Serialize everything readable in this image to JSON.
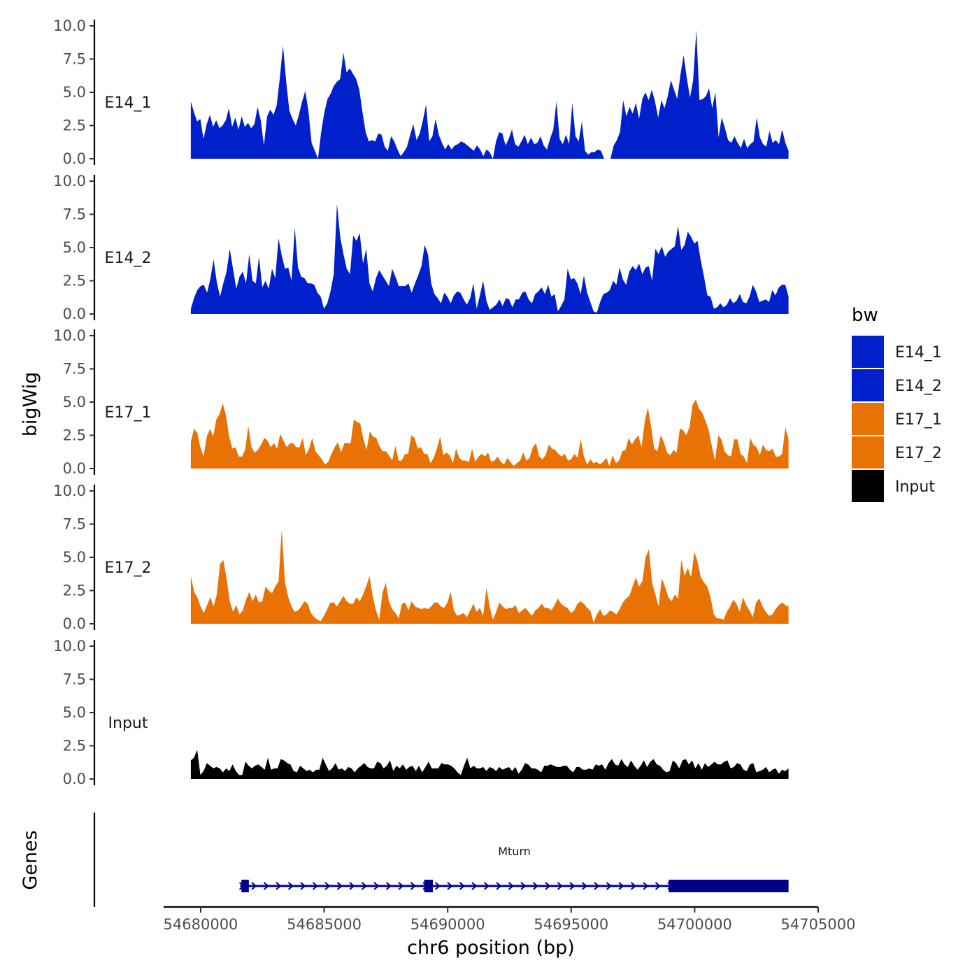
{
  "chart_data": {
    "type": "area",
    "chromosome": "chr6",
    "xlabel": "chr6 position (bp)",
    "ylabel": "bigWig",
    "genes_ylabel": "Genes",
    "xlim": [
      54678500,
      54705000
    ],
    "ylim": [
      0,
      10
    ],
    "x_ticks": [
      54680000,
      54685000,
      54690000,
      54695000,
      54700000,
      54705000
    ],
    "x_tick_labels": [
      "54680000",
      "54685000",
      "54690000",
      "54695000",
      "54700000",
      "54705000"
    ],
    "y_ticks": [
      0,
      2.5,
      5,
      7.5,
      10
    ],
    "y_tick_labels": [
      "0.0",
      "2.5",
      "5.0",
      "7.5",
      "10.0"
    ],
    "legend": {
      "title": "bw",
      "position": "right",
      "entries": [
        {
          "name": "E14_1",
          "color": "#0020CC"
        },
        {
          "name": "E14_2",
          "color": "#0020CC"
        },
        {
          "name": "E17_1",
          "color": "#E87304"
        },
        {
          "name": "E17_2",
          "color": "#E87304"
        },
        {
          "name": "Input",
          "color": "#000000"
        }
      ]
    },
    "series": [
      {
        "name": "E14_1",
        "label": "E14_1",
        "color": "#0020CC",
        "x_start": 54679600,
        "x_end": 54703800,
        "values": [
          4.3,
          3.5,
          2.8,
          3.0,
          1.5,
          2.6,
          3.3,
          2.4,
          2.9,
          2.3,
          2.5,
          2.9,
          3.8,
          2.4,
          3.1,
          2.2,
          3.2,
          2.4,
          2.7,
          2.3,
          2.6,
          3.9,
          2.9,
          1.0,
          3.2,
          3.7,
          3.3,
          4.0,
          6.1,
          8.5,
          5.8,
          3.6,
          3.0,
          2.5,
          3.3,
          4.3,
          5.1,
          3.6,
          1.2,
          0.6,
          0.0,
          2.0,
          3.5,
          4.5,
          4.9,
          5.5,
          5.8,
          6.0,
          8.0,
          6.5,
          6.8,
          6.4,
          6.0,
          5.2,
          3.5,
          2.0,
          1.3,
          1.4,
          1.3,
          1.9,
          1.8,
          0.9,
          0.6,
          1.7,
          1.3,
          0.7,
          0.2,
          0.5,
          0.9,
          1.8,
          2.6,
          1.4,
          1.9,
          2.9,
          4.1,
          1.3,
          1.7,
          3.0,
          1.8,
          1.2,
          0.7,
          1.1,
          0.7,
          1.0,
          1.1,
          1.3,
          1.2,
          1.0,
          0.8,
          0.6,
          1.0,
          0.7,
          0.2,
          0.7,
          0.5,
          0.0,
          1.3,
          2.0,
          1.9,
          1.0,
          1.5,
          2.2,
          1.1,
          0.9,
          1.3,
          1.8,
          1.1,
          1.6,
          1.1,
          1.2,
          1.7,
          1.0,
          0.7,
          1.5,
          2.2,
          4.3,
          1.5,
          1.1,
          1.8,
          1.1,
          4.2,
          1.7,
          1.3,
          2.8,
          0.6,
          0.3,
          0.5,
          0.5,
          0.7,
          0.6,
          0.0,
          0.0,
          0.0,
          1.0,
          1.4,
          2.0,
          4.4,
          3.2,
          3.9,
          3.4,
          4.2,
          3.0,
          4.5,
          5.0,
          4.4,
          5.2,
          4.3,
          3.1,
          4.4,
          3.8,
          4.7,
          5.9,
          5.2,
          4.5,
          6.3,
          7.8,
          6.1,
          4.6,
          5.9,
          9.7,
          4.4,
          4.5,
          4.7,
          5.3,
          3.8,
          5.0,
          1.6,
          3.1,
          2.3,
          1.4,
          1.2,
          1.7,
          1.2,
          0.8,
          1.5,
          0.8,
          1.1,
          1.3,
          3.1,
          1.6,
          1.1,
          0.9,
          2.1,
          1.2,
          1.4,
          1.1,
          2.2,
          1.2,
          0.6
        ]
      },
      {
        "name": "E14_2",
        "label": "E14_2",
        "color": "#0020CC",
        "x_start": 54679600,
        "x_end": 54703800,
        "values": [
          0.4,
          1.2,
          1.8,
          2.1,
          2.2,
          1.6,
          2.6,
          4.1,
          2.4,
          1.3,
          2.3,
          3.2,
          4.9,
          3.4,
          1.9,
          2.8,
          3.2,
          2.3,
          4.5,
          2.5,
          2.3,
          4.3,
          2.0,
          2.5,
          1.9,
          3.4,
          2.7,
          5.7,
          4.4,
          3.4,
          3.5,
          2.5,
          6.5,
          3.5,
          2.8,
          2.7,
          2.3,
          2.3,
          2.2,
          1.6,
          1.3,
          0.4,
          0.8,
          1.7,
          3.0,
          8.3,
          5.8,
          4.5,
          3.4,
          3.0,
          5.9,
          5.5,
          6.1,
          3.8,
          4.9,
          2.3,
          1.7,
          2.7,
          3.3,
          2.9,
          2.5,
          2.1,
          3.4,
          2.8,
          2.1,
          2.1,
          2.1,
          2.3,
          1.6,
          2.3,
          2.9,
          3.6,
          5.2,
          4.5,
          2.3,
          1.5,
          1.2,
          0.8,
          1.6,
          1.3,
          0.8,
          1.4,
          1.7,
          1.6,
          1.1,
          0.7,
          1.2,
          2.3,
          0.4,
          1.4,
          2.5,
          1.0,
          0.3,
          0.5,
          0.7,
          1.1,
          0.6,
          1.2,
          1.1,
          0.5,
          1.1,
          1.1,
          1.6,
          1.7,
          1.1,
          0.8,
          1.5,
          1.7,
          2.0,
          1.5,
          2.2,
          1.3,
          1.5,
          0.2,
          0.6,
          1.1,
          3.4,
          2.6,
          2.7,
          2.3,
          1.5,
          2.9,
          1.6,
          0.9,
          0.2,
          0.1,
          0.9,
          1.5,
          1.6,
          1.8,
          2.5,
          2.2,
          3.5,
          2.6,
          2.2,
          3.2,
          3.6,
          3.3,
          3.8,
          3.0,
          3.5,
          3.6,
          2.5,
          4.9,
          4.5,
          5.1,
          4.3,
          4.7,
          4.9,
          5.1,
          6.6,
          4.8,
          5.2,
          6.2,
          5.8,
          5.3,
          5.5,
          4.0,
          2.8,
          1.4,
          1.3,
          0.4,
          0.5,
          0.8,
          0.5,
          0.7,
          1.2,
          0.8,
          1.0,
          1.5,
          0.9,
          0.8,
          1.3,
          2.2,
          1.7,
          0.9,
          1.0,
          1.1,
          0.9,
          1.8,
          1.4,
          2.0,
          2.2,
          2.2,
          1.3
        ]
      },
      {
        "name": "E17_1",
        "label": "E17_1",
        "color": "#E87304",
        "x_start": 54679600,
        "x_end": 54703800,
        "values": [
          2.0,
          3.0,
          2.7,
          1.6,
          0.9,
          2.4,
          3.0,
          2.4,
          3.7,
          4.1,
          4.9,
          4.0,
          2.4,
          1.5,
          1.6,
          0.9,
          0.9,
          1.4,
          3.2,
          1.6,
          1.2,
          1.4,
          1.8,
          2.3,
          2.1,
          1.6,
          1.9,
          1.5,
          2.6,
          2.1,
          1.6,
          1.9,
          1.9,
          1.6,
          1.6,
          2.3,
          1.0,
          1.5,
          2.3,
          1.3,
          1.0,
          0.7,
          0.3,
          0.5,
          1.1,
          1.6,
          2.0,
          1.2,
          1.9,
          1.9,
          1.9,
          3.7,
          3.5,
          3.4,
          2.2,
          1.4,
          2.8,
          2.4,
          2.3,
          1.7,
          1.3,
          1.3,
          1.0,
          0.6,
          1.7,
          0.6,
          0.6,
          1.1,
          1.1,
          2.5,
          2.3,
          1.5,
          1.6,
          1.1,
          1.1,
          0.4,
          0.8,
          1.5,
          2.4,
          1.0,
          1.2,
          1.0,
          0.4,
          1.5,
          0.8,
          0.6,
          0.6,
          0.5,
          1.5,
          0.5,
          0.9,
          1.1,
          0.9,
          1.2,
          0.5,
          0.6,
          0.9,
          0.5,
          0.3,
          0.8,
          0.5,
          0.2,
          0.4,
          0.6,
          1.2,
          0.6,
          0.8,
          1.6,
          1.9,
          0.9,
          0.7,
          1.0,
          1.8,
          1.5,
          1.4,
          1.1,
          0.9,
          1.1,
          0.6,
          0.7,
          1.1,
          0.8,
          2.2,
          0.9,
          0.3,
          0.7,
          0.4,
          0.5,
          0.3,
          0.5,
          0.8,
          0.2,
          1.0,
          0.4,
          0.6,
          1.3,
          1.4,
          2.3,
          1.8,
          2.2,
          2.5,
          1.6,
          3.5,
          4.6,
          3.2,
          1.5,
          1.3,
          2.5,
          2.0,
          1.2,
          1.0,
          1.4,
          1.2,
          3.0,
          2.9,
          2.5,
          3.1,
          4.8,
          5.2,
          4.5,
          4.2,
          3.6,
          2.9,
          1.7,
          0.6,
          2.5,
          2.2,
          1.3,
          1.0,
          0.9,
          2.2,
          2.2,
          1.1,
          0.9,
          0.4,
          2.3,
          1.8,
          1.6,
          1.0,
          1.8,
          1.4,
          1.3,
          1.5,
          0.9,
          0.9,
          1.1,
          3.1,
          2.2
        ]
      },
      {
        "name": "E17_2",
        "label": "E17_2",
        "color": "#E87304",
        "x_start": 54679600,
        "x_end": 54703800,
        "values": [
          3.6,
          2.4,
          2.0,
          1.3,
          0.8,
          1.4,
          2.0,
          1.3,
          2.2,
          4.5,
          4.8,
          3.4,
          1.7,
          0.9,
          1.4,
          0.7,
          1.0,
          1.8,
          2.4,
          1.7,
          2.2,
          1.6,
          1.7,
          2.8,
          2.5,
          2.3,
          2.8,
          3.2,
          7.1,
          3.1,
          2.0,
          1.3,
          0.9,
          1.0,
          1.3,
          1.7,
          1.5,
          0.8,
          0.5,
          0.3,
          0.2,
          0.6,
          1.1,
          1.6,
          1.6,
          1.3,
          1.7,
          2.1,
          1.7,
          1.5,
          1.5,
          2.0,
          1.7,
          2.2,
          2.8,
          3.6,
          2.1,
          1.0,
          0.3,
          2.3,
          3.1,
          1.7,
          1.1,
          0.8,
          0.4,
          1.5,
          1.6,
          1.0,
          1.7,
          1.3,
          1.2,
          1.1,
          1.2,
          1.1,
          1.3,
          1.6,
          1.6,
          1.3,
          1.2,
          1.6,
          2.4,
          1.0,
          0.6,
          0.7,
          0.8,
          0.5,
          1.0,
          1.5,
          0.9,
          1.2,
          0.6,
          2.7,
          1.3,
          0.3,
          0.9,
          1.6,
          1.3,
          1.1,
          1.2,
          1.2,
          1.4,
          0.8,
          1.0,
          1.2,
          0.9,
          0.6,
          1.0,
          1.2,
          1.5,
          1.2,
          1.2,
          1.0,
          1.4,
          1.9,
          1.5,
          1.3,
          1.2,
          0.8,
          1.0,
          1.5,
          1.7,
          1.5,
          1.2,
          1.0,
          0.1,
          0.7,
          1.1,
          0.6,
          0.7,
          1.0,
          0.9,
          0.7,
          1.1,
          1.6,
          1.9,
          2.1,
          2.8,
          3.5,
          2.8,
          3.2,
          5.0,
          5.6,
          3.1,
          2.2,
          1.3,
          3.4,
          2.8,
          2.0,
          1.7,
          2.2,
          1.9,
          4.8,
          3.6,
          4.2,
          3.5,
          5.4,
          4.7,
          3.5,
          3.1,
          2.8,
          2.0,
          0.7,
          0.4,
          0.4,
          0.3,
          0.9,
          1.3,
          1.8,
          1.5,
          0.9,
          2.0,
          1.4,
          1.0,
          0.5,
          1.6,
          1.9,
          1.3,
          0.9,
          0.6,
          0.7,
          1.1,
          1.4,
          1.6,
          1.4,
          1.3
        ]
      },
      {
        "name": "Input",
        "label": "Input",
        "color": "#000000",
        "x_start": 54679600,
        "x_end": 54703800,
        "values": [
          1.4,
          1.6,
          2.2,
          0.3,
          0.6,
          1.2,
          1.0,
          0.8,
          0.9,
          0.8,
          0.5,
          0.8,
          0.6,
          1.1,
          0.6,
          0.3,
          0.3,
          1.3,
          1.0,
          0.8,
          1.0,
          1.1,
          0.9,
          0.7,
          1.6,
          0.7,
          0.8,
          0.8,
          1.5,
          1.4,
          1.2,
          1.1,
          0.6,
          0.5,
          1.0,
          0.8,
          0.6,
          0.7,
          0.5,
          0.7,
          0.7,
          1.6,
          1.1,
          0.6,
          0.8,
          1.2,
          0.7,
          0.8,
          0.6,
          0.9,
          0.8,
          0.5,
          0.8,
          1.0,
          1.2,
          0.9,
          0.8,
          0.8,
          1.3,
          1.2,
          0.8,
          1.0,
          1.4,
          0.6,
          1.0,
          0.8,
          1.1,
          0.7,
          0.9,
          1.0,
          0.6,
          1.0,
          0.5,
          0.9,
          1.3,
          0.8,
          0.8,
          0.8,
          1.2,
          1.1,
          1.1,
          1.0,
          0.8,
          0.5,
          0.3,
          1.0,
          1.6,
          0.8,
          1.0,
          0.8,
          0.8,
          0.9,
          0.6,
          0.9,
          0.8,
          0.6,
          0.9,
          0.7,
          0.8,
          0.9,
          0.6,
          0.9,
          0.4,
          0.7,
          1.2,
          1.1,
          0.8,
          0.8,
          0.7,
          0.5,
          1.0,
          1.0,
          1.1,
          1.0,
          0.9,
          0.9,
          1.0,
          1.0,
          0.7,
          0.5,
          0.9,
          0.9,
          0.7,
          0.7,
          0.8,
          0.7,
          1.1,
          1.0,
          1.1,
          0.7,
          1.2,
          1.5,
          1.1,
          1.0,
          1.5,
          1.1,
          0.9,
          1.4,
          1.0,
          0.7,
          1.0,
          1.4,
          0.9,
          1.3,
          1.5,
          1.1,
          1.0,
          0.7,
          0.5,
          0.6,
          1.4,
          1.2,
          0.8,
          1.4,
          1.5,
          1.1,
          1.4,
          0.8,
          1.2,
          0.7,
          1.2,
          0.9,
          1.1,
          1.3,
          1.1,
          1.1,
          1.3,
          1.4,
          0.8,
          0.9,
          1.2,
          1.1,
          0.7,
          0.6,
          1.1,
          1.2,
          0.5,
          0.6,
          0.7,
          0.9,
          0.5,
          0.7,
          0.8,
          0.4,
          0.7,
          0.6,
          0.8
        ]
      }
    ],
    "genes": [
      {
        "name": "Mturn",
        "strand": "+",
        "color": "#00008B",
        "start": 54681600,
        "end": 54703800,
        "exons": [
          {
            "start": 54681650,
            "end": 54681950
          },
          {
            "start": 54689050,
            "end": 54689400
          },
          {
            "start": 54698950,
            "end": 54703800
          }
        ]
      }
    ]
  }
}
